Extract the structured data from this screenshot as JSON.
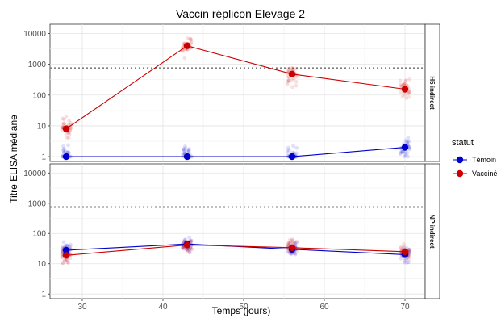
{
  "chart_data": {
    "type": "scatter",
    "title": "Vaccin réplicon Elevage 2",
    "xlabel": "Temps (jours)",
    "ylabel": "Titre ELISA médiane",
    "y_scale": "log10",
    "xlim": [
      26,
      72.5
    ],
    "ylim": [
      0.7,
      20000
    ],
    "x_ticks": [
      30,
      40,
      50,
      60,
      70
    ],
    "x_tick_labels": [
      "30",
      "40",
      "50",
      "60",
      "70"
    ],
    "y_ticks": [
      1,
      10,
      100,
      1000,
      10000
    ],
    "y_tick_labels": [
      "1",
      "10",
      "100",
      "1000",
      "10000"
    ],
    "grid": true,
    "reference_line": 750,
    "legend": {
      "title": "statut",
      "position": "right",
      "items": [
        {
          "label": "Témoin",
          "color": "#0000cc"
        },
        {
          "label": "Vacciné",
          "color": "#cc0000"
        }
      ]
    },
    "panels": [
      {
        "label": "H5 indirect",
        "series": [
          {
            "name": "Témoin",
            "color": "#0000cc",
            "x": [
              28,
              43,
              56,
              70
            ],
            "y": [
              1,
              1,
              1,
              2
            ]
          },
          {
            "name": "Vacciné",
            "color": "#cc0000",
            "x": [
              28,
              43,
              56,
              70
            ],
            "y": [
              8,
              4000,
              480,
              155
            ]
          }
        ]
      },
      {
        "label": "NP indirect",
        "series": [
          {
            "name": "Témoin",
            "color": "#0000cc",
            "x": [
              28,
              43,
              56,
              70
            ],
            "y": [
              28,
              45,
              30,
              20
            ]
          },
          {
            "name": "Vacciné",
            "color": "#cc0000",
            "x": [
              28,
              43,
              56,
              70
            ],
            "y": [
              19,
              42,
              34,
              25
            ]
          }
        ]
      }
    ]
  }
}
